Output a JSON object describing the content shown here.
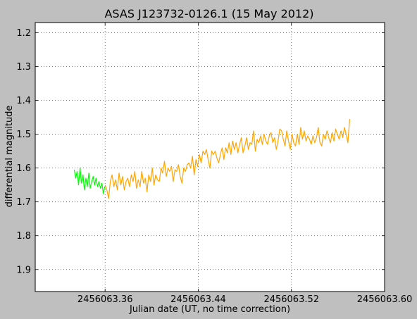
{
  "chart_data": {
    "type": "line",
    "title": "ASAS J123732-0126.1 (15 May 2012)",
    "xlabel": "Julian date (UT, no time correction)",
    "ylabel": "differential magnitude",
    "xlim": [
      2456063.3,
      2456063.6
    ],
    "ylim": [
      1.965,
      1.17
    ],
    "y_inverted": true,
    "grid": true,
    "xticks": [
      2456063.36,
      2456063.44,
      2456063.52,
      2456063.6
    ],
    "xtick_labels": [
      "2456063.36",
      "2456063.44",
      "2456063.52",
      "2456063.60"
    ],
    "yticks": [
      1.2,
      1.3,
      1.4,
      1.5,
      1.6,
      1.7,
      1.8,
      1.9
    ],
    "ytick_labels": [
      "1.2",
      "1.3",
      "1.4",
      "1.5",
      "1.6",
      "1.7",
      "1.8",
      "1.9"
    ],
    "series": [
      {
        "color": "#00ff00",
        "x": [
          2456063.3335,
          2456063.3348,
          2456063.336,
          2456063.3372,
          2456063.3385,
          2456063.3397,
          2456063.341,
          2456063.3422,
          2456063.3435,
          2456063.3447,
          2456063.346,
          2456063.3472,
          2456063.3485,
          2456063.3497,
          2456063.351,
          2456063.3522,
          2456063.3535,
          2456063.3547,
          2456063.356,
          2456063.3572,
          2456063.3585,
          2456063.3597
        ],
        "y": [
          1.605,
          1.63,
          1.61,
          1.65,
          1.6,
          1.645,
          1.62,
          1.665,
          1.63,
          1.655,
          1.615,
          1.66,
          1.64,
          1.625,
          1.65,
          1.63,
          1.655,
          1.64,
          1.66,
          1.645,
          1.675,
          1.655
        ]
      },
      {
        "color": "#ffa500",
        "x": [
          2456063.36,
          2456063.3615,
          2456063.363,
          2456063.3645,
          2456063.366,
          2456063.3675,
          2456063.369,
          2456063.3705,
          2456063.372,
          2456063.3735,
          2456063.375,
          2456063.3765,
          2456063.378,
          2456063.3795,
          2456063.381,
          2456063.3825,
          2456063.384,
          2456063.3855,
          2456063.387,
          2456063.3885,
          2456063.39,
          2456063.3915,
          2456063.393,
          2456063.3945,
          2456063.396,
          2456063.3975,
          2456063.399,
          2456063.4005,
          2456063.402,
          2456063.4035,
          2456063.405,
          2456063.4065,
          2456063.408,
          2456063.4095,
          2456063.411,
          2456063.4125,
          2456063.414,
          2456063.4155,
          2456063.417,
          2456063.4185,
          2456063.42,
          2456063.4215,
          2456063.423,
          2456063.4245,
          2456063.426,
          2456063.4275,
          2456063.429,
          2456063.4305,
          2456063.432,
          2456063.4335,
          2456063.435,
          2456063.4365,
          2456063.438,
          2456063.4395,
          2456063.441,
          2456063.4425,
          2456063.444,
          2456063.4455,
          2456063.447,
          2456063.4485,
          2456063.45,
          2456063.4515,
          2456063.453,
          2456063.4545,
          2456063.456,
          2456063.4575,
          2456063.459,
          2456063.4605,
          2456063.462,
          2456063.4635,
          2456063.465,
          2456063.4665,
          2456063.468,
          2456063.4695,
          2456063.471,
          2456063.4725,
          2456063.474,
          2456063.4755,
          2456063.477,
          2456063.4785,
          2456063.48,
          2456063.4815,
          2456063.483,
          2456063.4845,
          2456063.486,
          2456063.4875,
          2456063.489,
          2456063.4905,
          2456063.492,
          2456063.4935,
          2456063.495,
          2456063.4965,
          2456063.498,
          2456063.4995,
          2456063.501,
          2456063.5025,
          2456063.504,
          2456063.5055,
          2456063.507,
          2456063.5085,
          2456063.51,
          2456063.5115,
          2456063.513,
          2456063.5145,
          2456063.516,
          2456063.5175,
          2456063.519,
          2456063.5205,
          2456063.522,
          2456063.5235,
          2456063.525,
          2456063.5265,
          2456063.528,
          2456063.5295,
          2456063.531,
          2456063.5325,
          2456063.534,
          2456063.5355,
          2456063.537,
          2456063.5385,
          2456063.54,
          2456063.5415,
          2456063.543,
          2456063.5445,
          2456063.546,
          2456063.5475,
          2456063.549,
          2456063.5505,
          2456063.552,
          2456063.5535,
          2456063.555,
          2456063.5565,
          2456063.558,
          2456063.5595,
          2456063.561,
          2456063.5625,
          2456063.564,
          2456063.5655,
          2456063.567,
          2456063.5685,
          2456063.57
        ],
        "y": [
          1.65,
          1.665,
          1.69,
          1.64,
          1.62,
          1.655,
          1.635,
          1.665,
          1.615,
          1.65,
          1.625,
          1.665,
          1.64,
          1.63,
          1.655,
          1.62,
          1.64,
          1.61,
          1.66,
          1.635,
          1.655,
          1.61,
          1.645,
          1.63,
          1.67,
          1.62,
          1.64,
          1.6,
          1.65,
          1.62,
          1.635,
          1.64,
          1.6,
          1.615,
          1.58,
          1.625,
          1.6,
          1.61,
          1.595,
          1.64,
          1.605,
          1.61,
          1.59,
          1.625,
          1.645,
          1.6,
          1.61,
          1.59,
          1.585,
          1.6,
          1.565,
          1.62,
          1.575,
          1.595,
          1.56,
          1.585,
          1.55,
          1.56,
          1.545,
          1.575,
          1.6,
          1.55,
          1.56,
          1.55,
          1.57,
          1.585,
          1.56,
          1.54,
          1.575,
          1.54,
          1.555,
          1.525,
          1.56,
          1.52,
          1.545,
          1.525,
          1.555,
          1.53,
          1.51,
          1.555,
          1.535,
          1.51,
          1.545,
          1.525,
          1.53,
          1.49,
          1.55,
          1.515,
          1.525,
          1.505,
          1.53,
          1.5,
          1.52,
          1.53,
          1.505,
          1.495,
          1.525,
          1.51,
          1.545,
          1.52,
          1.485,
          1.49,
          1.515,
          1.535,
          1.49,
          1.52,
          1.545,
          1.5,
          1.525,
          1.535,
          1.5,
          1.53,
          1.48,
          1.515,
          1.49,
          1.52,
          1.505,
          1.515,
          1.53,
          1.505,
          1.525,
          1.51,
          1.48,
          1.525,
          1.535,
          1.5,
          1.515,
          1.49,
          1.51,
          1.525,
          1.495,
          1.52,
          1.485,
          1.5,
          1.515,
          1.49,
          1.51,
          1.48,
          1.5,
          1.525,
          1.455
        ]
      }
    ]
  }
}
